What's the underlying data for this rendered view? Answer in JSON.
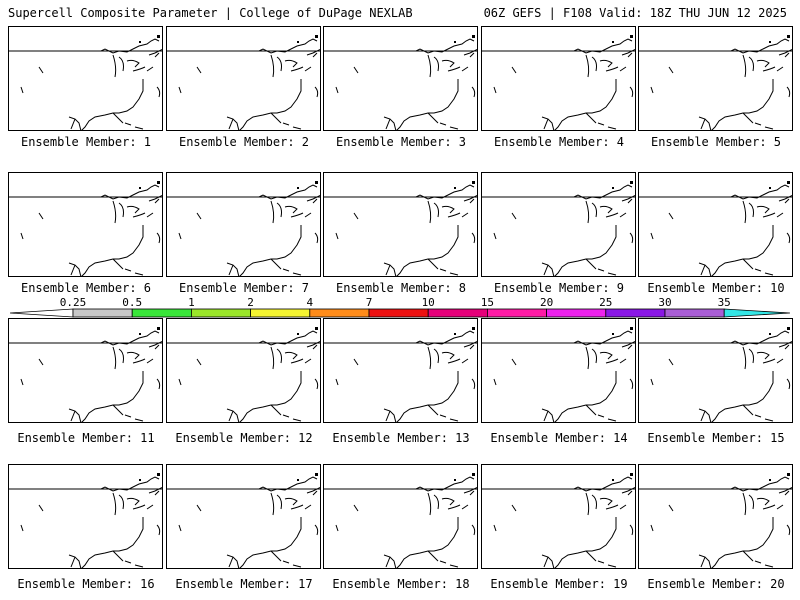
{
  "header": {
    "title": "Supercell Composite Parameter | College of DuPage NEXLAB",
    "run_info": "06Z GEFS | F108 Valid: 18Z THU JUN 12 2025"
  },
  "legend": {
    "levels": [
      {
        "label": "0.25",
        "color": "#c8c8c8"
      },
      {
        "label": "0.5",
        "color": "#39e639"
      },
      {
        "label": "1",
        "color": "#9be62a"
      },
      {
        "label": "2",
        "color": "#f5f531"
      },
      {
        "label": "4",
        "color": "#ff8c1a"
      },
      {
        "label": "7",
        "color": "#ee1111"
      },
      {
        "label": "10",
        "color": "#e6007a"
      },
      {
        "label": "15",
        "color": "#ff1aa6"
      },
      {
        "label": "20",
        "color": "#ee22ee"
      },
      {
        "label": "25",
        "color": "#8a17e6"
      },
      {
        "label": "30",
        "color": "#a95ed6"
      },
      {
        "label": "35",
        "color": "#33e6e6"
      }
    ]
  },
  "members": [
    {
      "label": "Ensemble Member: 1"
    },
    {
      "label": "Ensemble Member: 2"
    },
    {
      "label": "Ensemble Member: 3"
    },
    {
      "label": "Ensemble Member: 4"
    },
    {
      "label": "Ensemble Member: 5"
    },
    {
      "label": "Ensemble Member: 6"
    },
    {
      "label": "Ensemble Member: 7"
    },
    {
      "label": "Ensemble Member: 8"
    },
    {
      "label": "Ensemble Member: 9"
    },
    {
      "label": "Ensemble Member: 10"
    },
    {
      "label": "Ensemble Member: 11"
    },
    {
      "label": "Ensemble Member: 12"
    },
    {
      "label": "Ensemble Member: 13"
    },
    {
      "label": "Ensemble Member: 14"
    },
    {
      "label": "Ensemble Member: 15"
    },
    {
      "label": "Ensemble Member: 16"
    },
    {
      "label": "Ensemble Member: 17"
    },
    {
      "label": "Ensemble Member: 18"
    },
    {
      "label": "Ensemble Member: 19"
    },
    {
      "label": "Ensemble Member: 20"
    }
  ]
}
